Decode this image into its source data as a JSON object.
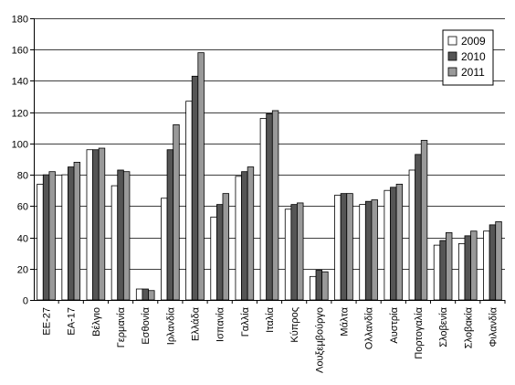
{
  "chart_data": {
    "type": "bar",
    "categories": [
      "ΕΕ-27",
      "ΕΑ-17",
      "Βέλγιο",
      "Γερμανία",
      "Εσθονία",
      "Ιρλανδία",
      "Ελλάδα",
      "Ισπανία",
      "Γαλλία",
      "Ιταλία",
      "Κύπρος",
      "Λουξεμβούργο",
      "Μάλτα",
      "Ολλανδία",
      "Αυστρία",
      "Πορτογαλία",
      "Σλοβενία",
      "Σλοβακία",
      "Φιλανδία"
    ],
    "series": [
      {
        "name": "2009",
        "color": "#ffffff",
        "values": [
          74,
          80,
          96,
          73,
          7,
          65,
          127,
          53,
          79,
          116,
          58,
          15,
          67,
          61,
          70,
          83,
          35,
          36,
          44
        ]
      },
      {
        "name": "2010",
        "color": "#555555",
        "values": [
          80,
          85,
          96,
          83,
          7,
          96,
          143,
          61,
          82,
          119,
          61,
          19,
          68,
          63,
          72,
          93,
          38,
          41,
          48
        ]
      },
      {
        "name": "2011",
        "color": "#999999",
        "values": [
          82,
          88,
          97,
          82,
          6,
          112,
          158,
          68,
          85,
          121,
          62,
          18,
          68,
          64,
          74,
          102,
          43,
          44,
          50
        ]
      }
    ],
    "ylim": [
      0,
      180
    ],
    "yticks": [
      0,
      20,
      40,
      60,
      80,
      100,
      120,
      140,
      160,
      180
    ],
    "grid": "horizontal",
    "legend": "top-right"
  }
}
